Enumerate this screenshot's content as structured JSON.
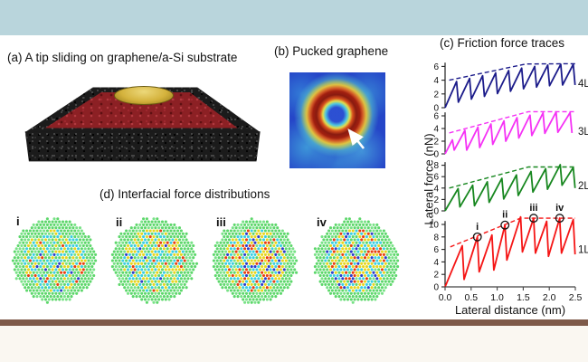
{
  "figure": {
    "top_band_color": "#b9d5dc",
    "bottom_bar_color": "#7e5a49",
    "bottom_area_color": "#faf7f1",
    "background_color": "#ffffff"
  },
  "panel_a": {
    "label": "(a) A tip sliding on graphene/a-Si substrate",
    "colors": {
      "substrate": "#1b1b1b",
      "graphene_sheet": "#8c2024",
      "tip": "#d4b23c"
    }
  },
  "panel_b": {
    "label": "(b) Pucked graphene"
  },
  "panel_c": {
    "title": "(c) Friction force traces"
  },
  "panel_d": {
    "title": "(d) Interfacial force distributions",
    "palette": {
      "green": "#5dd76b",
      "green2": "#79e287",
      "cyan": "#3bcfe0",
      "yellow": "#e6d61e",
      "red": "#e8400f",
      "blue": "#2c3ecb"
    },
    "disks": [
      {
        "label": "i",
        "mix": {
          "green": 0.38,
          "cyan": 0.28,
          "yellow": 0.24,
          "red": 0.06,
          "blue": 0.04
        }
      },
      {
        "label": "ii",
        "mix": {
          "green": 0.34,
          "cyan": 0.28,
          "yellow": 0.26,
          "red": 0.07,
          "blue": 0.05
        }
      },
      {
        "label": "iii",
        "mix": {
          "green": 0.16,
          "cyan": 0.28,
          "yellow": 0.34,
          "red": 0.14,
          "blue": 0.08
        }
      },
      {
        "label": "iv",
        "mix": {
          "green": 0.16,
          "cyan": 0.28,
          "yellow": 0.34,
          "red": 0.14,
          "blue": 0.08
        }
      }
    ]
  },
  "chart_data": {
    "type": "line",
    "title": "(c) Friction force traces",
    "xlabel": "Lateral distance (nm)",
    "ylabel": "Lateral force (nN)",
    "xlim": [
      0,
      2.5
    ],
    "xticks": [
      "0.0",
      "0.5",
      "1.0",
      "1.5",
      "2.0",
      "2.5"
    ],
    "legend_position": "right-of-each-trace",
    "grid": false,
    "series": [
      {
        "name": "4L",
        "color": "#1b1b8a",
        "ylim": [
          0,
          6.8
        ],
        "yticks": [
          0,
          2,
          4,
          6
        ],
        "peaks": [
          [
            0.22,
            3.8
          ],
          [
            0.47,
            4.25
          ],
          [
            0.72,
            4.65
          ],
          [
            0.97,
            5.05
          ],
          [
            1.22,
            5.4
          ],
          [
            1.47,
            5.75
          ],
          [
            1.72,
            6.0
          ],
          [
            1.97,
            6.2
          ],
          [
            2.22,
            6.3
          ],
          [
            2.46,
            6.3
          ]
        ],
        "slip_drop": 3.0,
        "min_trough": 0.7,
        "envelope": [
          [
            0.08,
            4.0
          ],
          [
            1.55,
            6.35
          ],
          [
            2.5,
            6.4
          ]
        ],
        "markers": []
      },
      {
        "name": "3L",
        "color": "#f531f5",
        "ylim": [
          0,
          6.8
        ],
        "yticks": [
          0,
          2,
          4,
          6
        ],
        "peaks": [
          [
            0.14,
            2.2
          ],
          [
            0.38,
            3.7
          ],
          [
            0.63,
            4.2
          ],
          [
            0.88,
            4.7
          ],
          [
            1.13,
            5.2
          ],
          [
            1.38,
            5.7
          ],
          [
            1.63,
            6.1
          ],
          [
            1.88,
            6.45
          ],
          [
            2.13,
            6.6
          ],
          [
            2.4,
            6.5
          ]
        ],
        "slip_drop": 3.2,
        "min_trough": 0.6,
        "envelope": [
          [
            0.08,
            3.3
          ],
          [
            1.6,
            6.65
          ],
          [
            2.5,
            6.65
          ]
        ],
        "markers": []
      },
      {
        "name": "2L",
        "color": "#17871f",
        "ylim": [
          0,
          8.5
        ],
        "yticks": [
          0,
          2,
          4,
          6,
          8
        ],
        "peaks": [
          [
            0.25,
            3.9
          ],
          [
            0.53,
            4.5
          ],
          [
            0.81,
            5.1
          ],
          [
            1.09,
            5.7
          ],
          [
            1.37,
            6.3
          ],
          [
            1.65,
            6.9
          ],
          [
            1.93,
            7.4
          ],
          [
            2.21,
            8.1
          ],
          [
            2.46,
            7.6
          ]
        ],
        "slip_drop": 3.6,
        "min_trough": 0.7,
        "envelope": [
          [
            0.08,
            4.0
          ],
          [
            1.6,
            7.7
          ],
          [
            2.5,
            7.7
          ]
        ],
        "markers": []
      },
      {
        "name": "1L",
        "color": "#f51515",
        "ylim": [
          0,
          11.5
        ],
        "yticks": [
          0,
          2,
          4,
          6,
          8,
          10
        ],
        "peaks": [
          [
            0.33,
            6.6
          ],
          [
            0.62,
            8.0
          ],
          [
            0.9,
            8.3
          ],
          [
            1.15,
            9.9
          ],
          [
            1.45,
            11.2
          ],
          [
            1.7,
            11.0
          ],
          [
            1.95,
            10.5
          ],
          [
            2.2,
            11.0
          ],
          [
            2.46,
            10.8
          ]
        ],
        "slip_drop": 5.6,
        "min_trough": 1.2,
        "envelope": [
          [
            0.1,
            6.4
          ],
          [
            1.45,
            11.0
          ],
          [
            2.5,
            11.0
          ]
        ],
        "markers": [
          {
            "label": "i",
            "x": 0.62,
            "y": 8.0
          },
          {
            "label": "ii",
            "x": 1.15,
            "y": 9.9
          },
          {
            "label": "iii",
            "x": 1.7,
            "y": 11.0
          },
          {
            "label": "iv",
            "x": 2.2,
            "y": 11.0
          }
        ]
      }
    ]
  }
}
